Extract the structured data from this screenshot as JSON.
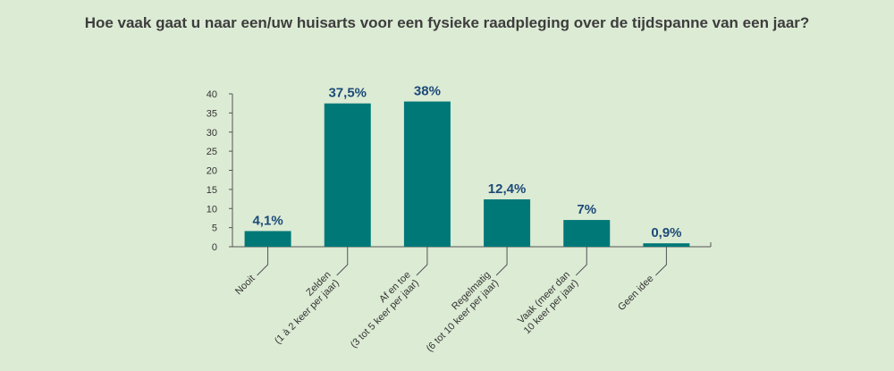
{
  "title": "Hoe vaak gaat u naar een/uw huisarts voor een fysieke raadpleging over de tijdspanne van een jaar?",
  "colors": {
    "bar": "#007878",
    "label": "#1c4a78",
    "axis": "#555555",
    "background": "#dcebd4"
  },
  "chart_data": {
    "type": "bar",
    "title": "Hoe vaak gaat u naar een/uw huisarts voor een fysieke raadpleging over de tijdspanne van een jaar?",
    "categories": [
      [
        "Nooit"
      ],
      [
        "Zelden",
        "(1 à 2 keer per jaar)"
      ],
      [
        "Af en toe",
        "(3 tot 5 keer per jaar)"
      ],
      [
        "Regelmatig",
        "(6 tot 10 keer per jaar)"
      ],
      [
        "Vaak (meer dan",
        "10 keer per jaar)"
      ],
      [
        "Geen idee"
      ]
    ],
    "values": [
      4.1,
      37.5,
      38,
      12.4,
      7,
      0.9
    ],
    "data_labels": [
      "4,1%",
      "37,5%",
      "38%",
      "12,4%",
      "7%",
      "0,9%"
    ],
    "yticks": [
      "0",
      "5",
      "10",
      "15",
      "20",
      "25",
      "30",
      "35",
      "40"
    ],
    "ylim": [
      0,
      40
    ],
    "grid": false
  }
}
